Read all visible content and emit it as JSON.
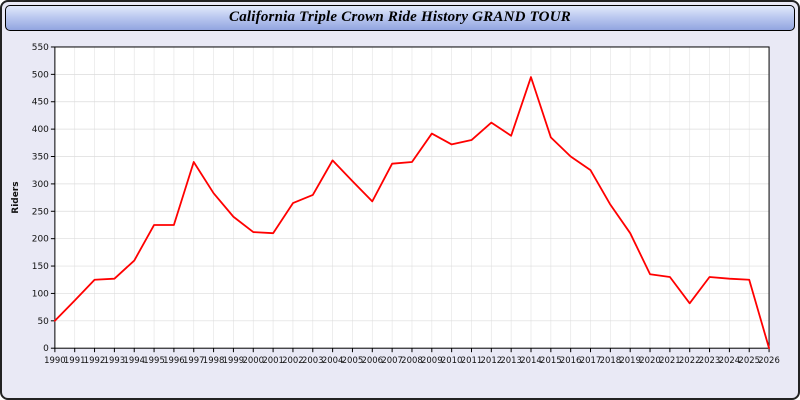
{
  "page": {
    "background": "#e9e9f5",
    "border_color": "#222222"
  },
  "header": {
    "title": "California Triple Crown Ride History GRAND TOUR"
  },
  "chart_data": {
    "type": "line",
    "title": "California Triple Crown Ride History GRAND TOUR",
    "xlabel": "",
    "ylabel": "Riders",
    "ylim": [
      0,
      550
    ],
    "ytick_step": 50,
    "grid": true,
    "legend": "none",
    "line_color": "#ff0000",
    "plot_background": "#ffffff",
    "grid_color": "#dcdcdc",
    "x": [
      1990,
      1991,
      1992,
      1993,
      1994,
      1995,
      1996,
      1997,
      1998,
      1999,
      2000,
      2001,
      2002,
      2003,
      2004,
      2005,
      2006,
      2007,
      2008,
      2009,
      2010,
      2011,
      2012,
      2013,
      2014,
      2015,
      2016,
      2017,
      2018,
      2019,
      2020,
      2021,
      2022,
      2023,
      2024,
      2025,
      2026
    ],
    "values": [
      50,
      87,
      125,
      127,
      160,
      225,
      225,
      340,
      283,
      240,
      212,
      210,
      265,
      280,
      343,
      305,
      268,
      337,
      340,
      392,
      372,
      380,
      412,
      388,
      495,
      385,
      350,
      325,
      262,
      210,
      135,
      130,
      82,
      130,
      127,
      125,
      0
    ]
  }
}
